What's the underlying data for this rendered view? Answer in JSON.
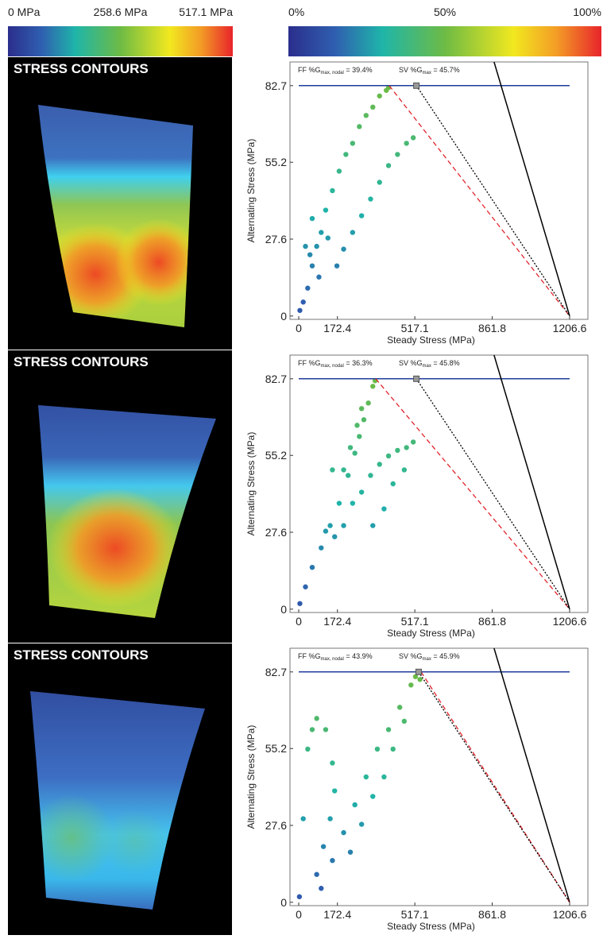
{
  "colorbars": [
    {
      "lim": [
        0,
        517.1
      ],
      "ticks": [
        {
          "value": 0,
          "label": "0 MPa"
        },
        {
          "value": 258.6,
          "label": "258.6 MPa"
        },
        {
          "value": 517.1,
          "label": "517.1 MPa"
        }
      ]
    },
    {
      "lim": [
        0,
        100
      ],
      "ticks": [
        {
          "value": 0,
          "label": "0%"
        },
        {
          "value": 50,
          "label": "50%"
        },
        {
          "value": 100,
          "label": "100%"
        }
      ]
    }
  ],
  "contour_panels": [
    {
      "title": "STRESS CONTOURS"
    },
    {
      "title": "STRESS CONTOURS"
    },
    {
      "title": "STRESS CONTOURS"
    }
  ],
  "chart_data": [
    {
      "type": "scatter",
      "xlabel": "Steady Stress (MPa)",
      "ylabel": "Alternating Stress (MPa)",
      "xlim": [
        -39,
        1288
      ],
      "ylim": [
        -1.2,
        91.2
      ],
      "xticks": [
        0,
        172.4,
        517.1,
        861.8,
        1206.6
      ],
      "yticks": [
        0,
        27.6,
        55.2,
        82.7
      ],
      "points": {
        "x": [
          5,
          20,
          40,
          60,
          80,
          100,
          120,
          150,
          180,
          210,
          240,
          270,
          300,
          330,
          360,
          390,
          400,
          50,
          90,
          130,
          170,
          200,
          240,
          280,
          320,
          360,
          400,
          440,
          480,
          510,
          60,
          30
        ],
        "y": [
          2,
          5,
          10,
          18,
          25,
          30,
          38,
          45,
          52,
          58,
          62,
          68,
          72,
          75,
          79,
          81,
          82,
          22,
          14,
          28,
          18,
          24,
          30,
          36,
          42,
          48,
          54,
          58,
          62,
          64,
          35,
          25
        ]
      },
      "lines": [
        {
          "color": "#1f3c99",
          "style": "solid",
          "x": [
            0,
            1206.6
          ],
          "y": [
            82.7,
            82.7
          ]
        },
        {
          "color": "#000000",
          "style": "solid",
          "x": [
            870,
            1206.6
          ],
          "y": [
            91.2,
            0
          ]
        },
        {
          "color": "#e0242b",
          "style": "dashed",
          "x": [
            403,
            1206.6
          ],
          "y": [
            82.7,
            0
          ]
        },
        {
          "color": "#000000",
          "style": "dotted",
          "x": [
            524,
            1206.6
          ],
          "y": [
            82.7,
            0
          ]
        }
      ],
      "marker": {
        "x": 524,
        "y": 82.7,
        "color": "#999999"
      },
      "ff_label": {
        "prefix": "FF %G",
        "sub": "max, nodal",
        "rest": " = 39.4%"
      },
      "sv_label": {
        "prefix": "SV %G",
        "sub": "max",
        "rest": " = 45.7%"
      }
    },
    {
      "type": "scatter",
      "xlabel": "Steady Stress (MPa)",
      "ylabel": "Alternating Stress (MPa)",
      "xlim": [
        -39,
        1288
      ],
      "ylim": [
        -1.2,
        91.2
      ],
      "xticks": [
        0,
        172.4,
        517.1,
        861.8,
        1206.6
      ],
      "yticks": [
        0,
        27.6,
        55.2,
        82.7
      ],
      "points": {
        "x": [
          5,
          30,
          60,
          100,
          140,
          180,
          220,
          250,
          270,
          290,
          310,
          330,
          340,
          200,
          230,
          260,
          280,
          120,
          160,
          200,
          240,
          280,
          320,
          360,
          400,
          440,
          480,
          510,
          470,
          420,
          380,
          330,
          150
        ],
        "y": [
          2,
          8,
          15,
          22,
          30,
          38,
          48,
          56,
          62,
          68,
          74,
          80,
          82,
          50,
          58,
          66,
          72,
          28,
          26,
          30,
          38,
          42,
          48,
          52,
          55,
          57,
          58,
          60,
          50,
          45,
          36,
          30,
          50
        ]
      },
      "lines": [
        {
          "color": "#1f3c99",
          "style": "solid",
          "x": [
            0,
            1206.6
          ],
          "y": [
            82.7,
            82.7
          ]
        },
        {
          "color": "#000000",
          "style": "solid",
          "x": [
            870,
            1206.6
          ],
          "y": [
            91.2,
            0
          ]
        },
        {
          "color": "#e0242b",
          "style": "dashed",
          "x": [
            343,
            1206.6
          ],
          "y": [
            82.7,
            0
          ]
        },
        {
          "color": "#000000",
          "style": "dotted",
          "x": [
            524,
            1206.6
          ],
          "y": [
            82.7,
            0
          ]
        }
      ],
      "marker": {
        "x": 524,
        "y": 82.7,
        "color": "#999999"
      },
      "ff_label": {
        "prefix": "FF %G",
        "sub": "max, nodal",
        "rest": " = 36.3%"
      },
      "sv_label": {
        "prefix": "SV %G",
        "sub": "max",
        "rest": " = 45.8%"
      }
    },
    {
      "type": "scatter",
      "xlabel": "Steady Stress (MPa)",
      "ylabel": "Alternating Stress (MPa)",
      "xlim": [
        -39,
        1288
      ],
      "ylim": [
        -1.2,
        91.2
      ],
      "xticks": [
        0,
        172.4,
        517.1,
        861.8,
        1206.6
      ],
      "yticks": [
        0,
        27.6,
        55.2,
        82.7
      ],
      "points": {
        "x": [
          3,
          20,
          40,
          60,
          80,
          120,
          150,
          160,
          140,
          110,
          80,
          100,
          150,
          200,
          250,
          300,
          350,
          400,
          450,
          500,
          520,
          540,
          470,
          420,
          380,
          330,
          280,
          230
        ],
        "y": [
          2,
          30,
          55,
          62,
          66,
          62,
          50,
          40,
          30,
          20,
          10,
          5,
          15,
          25,
          35,
          45,
          55,
          62,
          70,
          78,
          81,
          80,
          65,
          55,
          45,
          38,
          28,
          18
        ]
      },
      "lines": [
        {
          "color": "#1f3c99",
          "style": "solid",
          "x": [
            0,
            1206.6
          ],
          "y": [
            82.7,
            82.7
          ]
        },
        {
          "color": "#000000",
          "style": "solid",
          "x": [
            870,
            1206.6
          ],
          "y": [
            91.2,
            0
          ]
        },
        {
          "color": "#e0242b",
          "style": "dashed",
          "x": [
            545,
            1206.6
          ],
          "y": [
            82.7,
            0
          ]
        },
        {
          "color": "#000000",
          "style": "dotted",
          "x": [
            534,
            1206.6
          ],
          "y": [
            82.7,
            0
          ]
        }
      ],
      "marker": {
        "x": 534,
        "y": 82.7,
        "color": "#999999"
      },
      "ff_label": {
        "prefix": "FF %G",
        "sub": "max, nodal",
        "rest": " = 43.9%"
      },
      "sv_label": {
        "prefix": "SV %G",
        "sub": "max",
        "rest": " = 45.9%"
      }
    }
  ]
}
